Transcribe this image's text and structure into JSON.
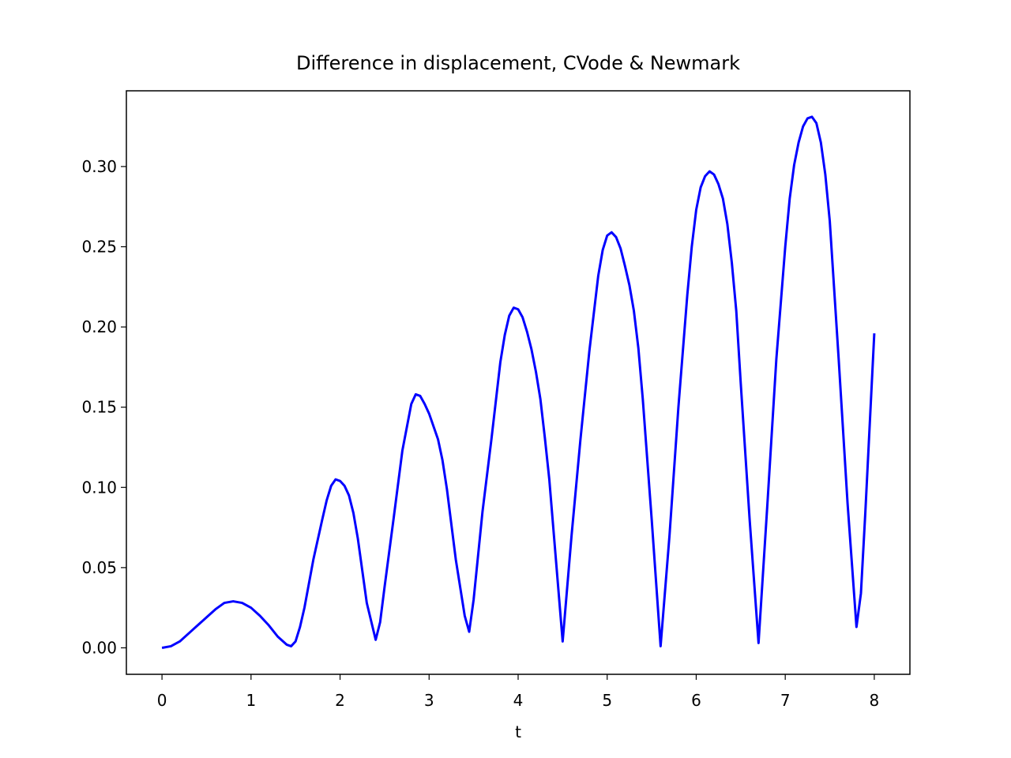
{
  "chart_data": {
    "type": "line",
    "title": "Difference in displacement, CVode & Newmark",
    "x_label": "t",
    "x": [
      0,
      0.1,
      0.2,
      0.3,
      0.4,
      0.5,
      0.6,
      0.7,
      0.8,
      0.9,
      1.0,
      1.1,
      1.2,
      1.3,
      1.4,
      1.45,
      1.5,
      1.55,
      1.6,
      1.7,
      1.8,
      1.85,
      1.9,
      1.95,
      2.0,
      2.05,
      2.1,
      2.15,
      2.2,
      2.3,
      2.4,
      2.45,
      2.5,
      2.6,
      2.7,
      2.8,
      2.85,
      2.9,
      2.95,
      3.0,
      3.1,
      3.15,
      3.2,
      3.3,
      3.4,
      3.45,
      3.5,
      3.6,
      3.7,
      3.8,
      3.85,
      3.9,
      3.95,
      4.0,
      4.05,
      4.1,
      4.15,
      4.2,
      4.25,
      4.3,
      4.35,
      4.5,
      4.6,
      4.7,
      4.8,
      4.9,
      4.95,
      5.0,
      5.05,
      5.1,
      5.15,
      5.2,
      5.25,
      5.3,
      5.35,
      5.4,
      5.5,
      5.6,
      5.7,
      5.8,
      5.9,
      5.95,
      6.0,
      6.05,
      6.1,
      6.15,
      6.2,
      6.25,
      6.3,
      6.35,
      6.4,
      6.45,
      6.5,
      6.6,
      6.7,
      6.8,
      6.9,
      7.0,
      7.05,
      7.1,
      7.15,
      7.2,
      7.25,
      7.3,
      7.35,
      7.4,
      7.45,
      7.5,
      7.6,
      7.7,
      7.8,
      7.85,
      7.9,
      8.0
    ],
    "series": [
      {
        "color": "#0000ff",
        "values": [
          0,
          0.001,
          0.004,
          0.009,
          0.014,
          0.019,
          0.024,
          0.028,
          0.029,
          0.028,
          0.025,
          0.02,
          0.014,
          0.007,
          0.002,
          0.001,
          0.004,
          0.013,
          0.025,
          0.055,
          0.08,
          0.092,
          0.101,
          0.105,
          0.104,
          0.101,
          0.095,
          0.084,
          0.068,
          0.028,
          0.005,
          0.016,
          0.038,
          0.08,
          0.123,
          0.152,
          0.158,
          0.157,
          0.152,
          0.146,
          0.13,
          0.117,
          0.099,
          0.055,
          0.02,
          0.01,
          0.03,
          0.085,
          0.13,
          0.178,
          0.195,
          0.207,
          0.212,
          0.211,
          0.206,
          0.197,
          0.186,
          0.172,
          0.155,
          0.131,
          0.105,
          0.004,
          0.07,
          0.13,
          0.185,
          0.232,
          0.248,
          0.257,
          0.259,
          0.256,
          0.249,
          0.238,
          0.226,
          0.21,
          0.187,
          0.155,
          0.08,
          0.001,
          0.07,
          0.15,
          0.22,
          0.25,
          0.273,
          0.287,
          0.294,
          0.297,
          0.295,
          0.289,
          0.28,
          0.264,
          0.24,
          0.21,
          0.165,
          0.08,
          0.003,
          0.09,
          0.18,
          0.25,
          0.28,
          0.301,
          0.315,
          0.325,
          0.33,
          0.331,
          0.327,
          0.315,
          0.295,
          0.266,
          0.18,
          0.09,
          0.013,
          0.034,
          0.085,
          0.196
        ]
      }
    ],
    "xlim": [
      -0.4,
      8.4
    ],
    "ylim": [
      -0.0165,
      0.3472
    ],
    "xticks": [
      0,
      1,
      2,
      3,
      4,
      5,
      6,
      7,
      8
    ],
    "yticks": [
      {
        "value": 0,
        "label": "0.00"
      },
      {
        "value": 0.05,
        "label": "0.05"
      },
      {
        "value": 0.1,
        "label": "0.10"
      },
      {
        "value": 0.15,
        "label": "0.15"
      },
      {
        "value": 0.2,
        "label": "0.20"
      },
      {
        "value": 0.25,
        "label": "0.25"
      },
      {
        "value": 0.3,
        "label": "0.30"
      }
    ]
  }
}
